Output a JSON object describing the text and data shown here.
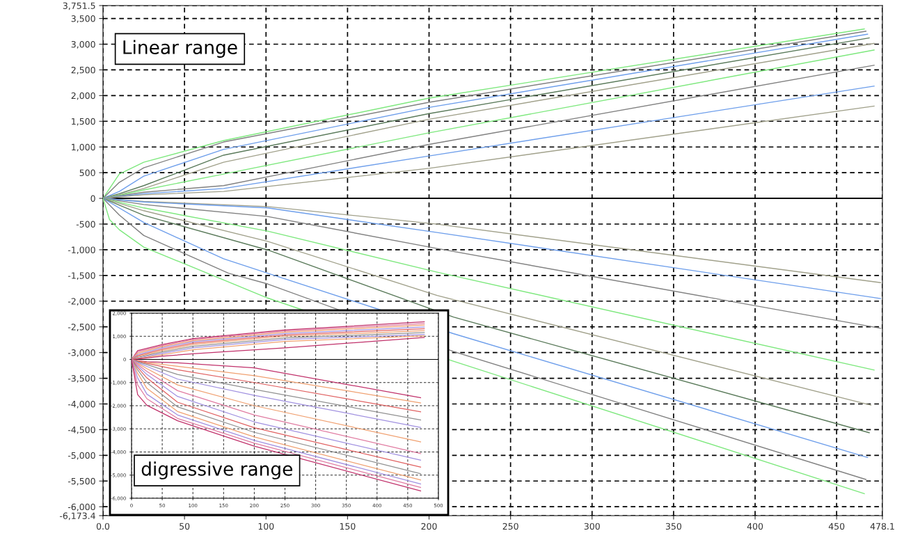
{
  "chart_data": [
    {
      "type": "line",
      "xlim": [
        0,
        478.1
      ],
      "ylim": [
        -6173.4,
        3751.5
      ],
      "xticks": [
        {
          "value": 0,
          "label": "0.0"
        },
        50,
        100,
        150,
        200,
        250,
        300,
        350,
        400,
        450,
        {
          "value": 478.1,
          "label": "478.1"
        }
      ],
      "yticks": [
        {
          "value": -6173.4,
          "label": "-6,173.4"
        },
        {
          "value": -6000,
          "label": "-6,000"
        },
        {
          "value": -5500,
          "label": "-5,500"
        },
        {
          "value": -5000,
          "label": "-5,000"
        },
        {
          "value": -4500,
          "label": "-4,500"
        },
        {
          "value": -4000,
          "label": "-4,000"
        },
        {
          "value": -3500,
          "label": "-3,500"
        },
        {
          "value": -3000,
          "label": "-3,000"
        },
        {
          "value": -2500,
          "label": "-2,500"
        },
        {
          "value": -2000,
          "label": "-2,000"
        },
        {
          "value": -1500,
          "label": "-1,500"
        },
        {
          "value": -1000,
          "label": "-1,000"
        },
        -500,
        0,
        500,
        {
          "value": 1000,
          "label": "1,000"
        },
        {
          "value": 1500,
          "label": "1,500"
        },
        {
          "value": 2000,
          "label": "2,000"
        },
        {
          "value": 2500,
          "label": "2,500"
        },
        {
          "value": 3000,
          "label": "3,000"
        },
        {
          "value": 3500,
          "label": "3,500"
        },
        {
          "value": 3751.5,
          "label": "3,751.5"
        }
      ],
      "grid": true,
      "line_style": "solid",
      "marker": "none",
      "ref_lines": [
        {
          "axis": "y",
          "value": 0,
          "color": "#000000",
          "line_style": "solid"
        }
      ],
      "annotations": [
        "Linear range"
      ],
      "series": [
        {
          "color": "#7de87d",
          "x": [
            0,
            10,
            25,
            74,
            200,
            467
          ],
          "values": [
            0,
            474,
            704,
            1125,
            1950,
            3297
          ]
        },
        {
          "color": "#808080",
          "x": [
            0,
            10,
            25,
            74,
            200,
            468
          ],
          "values": [
            0,
            311,
            596,
            1097,
            1870,
            3252
          ]
        },
        {
          "color": "#6d9eeb",
          "x": [
            0,
            10,
            25,
            74,
            200,
            469
          ],
          "values": [
            0,
            135,
            433,
            954,
            1770,
            3195
          ]
        },
        {
          "color": "#5a7a5a",
          "x": [
            0,
            10,
            25,
            74,
            200,
            470
          ],
          "values": [
            0,
            90,
            248,
            841,
            1650,
            3122
          ]
        },
        {
          "color": "#a0a08a",
          "x": [
            0,
            10,
            25,
            74,
            200,
            473
          ],
          "values": [
            0,
            70,
            192,
            704,
            1540,
            3015
          ]
        },
        {
          "color": "#7de87d",
          "x": [
            0,
            10,
            25,
            74,
            200,
            473
          ],
          "values": [
            0,
            60,
            163,
            474,
            1275,
            2886
          ]
        },
        {
          "color": "#808080",
          "x": [
            0,
            25,
            74,
            200,
            473
          ],
          "values": [
            0,
            120,
            248,
            1050,
            2591
          ]
        },
        {
          "color": "#6d9eeb",
          "x": [
            0,
            25,
            74,
            200,
            473
          ],
          "values": [
            0,
            90,
            192,
            825,
            2185
          ]
        },
        {
          "color": "#a0a08a",
          "x": [
            0,
            25,
            74,
            200,
            473
          ],
          "values": [
            0,
            70,
            135,
            585,
            1795
          ]
        },
        {
          "color": "#a0a08a",
          "x": [
            0,
            25,
            101,
            205,
            477
          ],
          "values": [
            0,
            -60,
            -160,
            -501,
            -1640
          ]
        },
        {
          "color": "#6d9eeb",
          "x": [
            0,
            25,
            101,
            205,
            477
          ],
          "values": [
            0,
            -70,
            -186,
            -664,
            -1949
          ]
        },
        {
          "color": "#808080",
          "x": [
            0,
            25,
            101,
            205,
            477
          ],
          "values": [
            0,
            -120,
            -353,
            -976,
            -2527
          ]
        },
        {
          "color": "#7de87d",
          "x": [
            0,
            25,
            101,
            205,
            473
          ],
          "values": [
            0,
            -186,
            -637,
            -1436,
            -3340
          ]
        },
        {
          "color": "#a0a08a",
          "x": [
            0,
            25,
            101,
            205,
            471
          ],
          "values": [
            0,
            -240,
            -836,
            -1890,
            -4024
          ]
        },
        {
          "color": "#5a7a5a",
          "x": [
            0,
            25,
            101,
            215,
            470
          ],
          "values": [
            0,
            -330,
            -1004,
            -2310,
            -4560
          ]
        },
        {
          "color": "#6d9eeb",
          "x": [
            0,
            25,
            74,
            101,
            215,
            469
          ],
          "values": [
            0,
            -469,
            -1175,
            -1456,
            -2633,
            -5041
          ]
        },
        {
          "color": "#808080",
          "x": [
            0,
            10,
            25,
            77,
            101,
            215,
            468
          ],
          "values": [
            0,
            -325,
            -722,
            -1456,
            -1665,
            -2980,
            -5470
          ]
        },
        {
          "color": "#7de87d",
          "x": [
            0,
            4,
            10,
            25,
            101,
            215,
            467
          ],
          "values": [
            0,
            -412,
            -610,
            -948,
            -1939,
            -3170,
            -5745
          ]
        }
      ]
    },
    {
      "type": "line",
      "xlim": [
        0,
        500
      ],
      "ylim": [
        -6000,
        2000
      ],
      "xticks": [
        0,
        50,
        100,
        150,
        200,
        250,
        300,
        350,
        400,
        450,
        500
      ],
      "yticks": [
        {
          "value": -6000,
          "label": "-6,000"
        },
        {
          "value": -5000,
          "label": "-5,000"
        },
        {
          "value": -4000,
          "label": "-4,000"
        },
        {
          "value": -3000,
          "label": "-3,000"
        },
        {
          "value": -2000,
          "label": "-2,000"
        },
        {
          "value": -1000,
          "label": "-1,000"
        },
        0,
        {
          "value": 1000,
          "label": "1,000"
        },
        {
          "value": 2000,
          "label": "2,000"
        }
      ],
      "grid": true,
      "line_style": "solid",
      "marker": "none",
      "ref_lines": [
        {
          "axis": "y",
          "value": 0,
          "color": "#000000",
          "line_style": "solid"
        }
      ],
      "annotations": [
        "digressive range"
      ],
      "series": [
        {
          "color": "#c0306a",
          "x": [
            0,
            10,
            50,
            100,
            250,
            477
          ],
          "values": [
            0,
            380,
            646,
            899,
            1273,
            1626
          ]
        },
        {
          "color": "#e07aa0",
          "x": [
            0,
            10,
            50,
            100,
            250,
            477
          ],
          "values": [
            0,
            330,
            600,
            860,
            1230,
            1555
          ]
        },
        {
          "color": "#f0a070",
          "x": [
            0,
            10,
            50,
            100,
            250,
            477
          ],
          "values": [
            0,
            270,
            550,
            810,
            1180,
            1485
          ]
        },
        {
          "color": "#a090e0",
          "x": [
            0,
            10,
            50,
            100,
            250,
            477
          ],
          "values": [
            0,
            210,
            500,
            760,
            1120,
            1404
          ]
        },
        {
          "color": "#e06060",
          "x": [
            0,
            10,
            50,
            100,
            250,
            477
          ],
          "values": [
            0,
            160,
            440,
            700,
            1060,
            1323
          ]
        },
        {
          "color": "#f0a070",
          "x": [
            0,
            10,
            50,
            100,
            250,
            477
          ],
          "values": [
            0,
            120,
            380,
            640,
            1000,
            1242
          ]
        },
        {
          "color": "#909090",
          "x": [
            0,
            10,
            50,
            100,
            250,
            477
          ],
          "values": [
            0,
            90,
            320,
            570,
            930,
            1161
          ]
        },
        {
          "color": "#a090e0",
          "x": [
            0,
            10,
            50,
            100,
            250,
            477
          ],
          "values": [
            0,
            60,
            260,
            500,
            860,
            1080
          ]
        },
        {
          "color": "#f0a070",
          "x": [
            0,
            10,
            50,
            100,
            250,
            477
          ],
          "values": [
            0,
            40,
            200,
            420,
            780,
            1020
          ]
        },
        {
          "color": "#c0306a",
          "x": [
            0,
            10,
            50,
            100,
            250,
            477
          ],
          "values": [
            0,
            20,
            141,
            242,
            500,
            949
          ]
        },
        {
          "color": "#c0306a",
          "x": [
            0,
            10,
            25,
            75,
            200,
            471
          ],
          "values": [
            0,
            -50,
            -100,
            -150,
            -364,
            -1656
          ]
        },
        {
          "color": "#f0a070",
          "x": [
            0,
            10,
            25,
            75,
            200,
            471
          ],
          "values": [
            0,
            -60,
            -130,
            -300,
            -700,
            -1879
          ]
        },
        {
          "color": "#e06060",
          "x": [
            0,
            10,
            25,
            75,
            200,
            471
          ],
          "values": [
            0,
            -80,
            -170,
            -450,
            -1000,
            -2262
          ]
        },
        {
          "color": "#909090",
          "x": [
            0,
            10,
            25,
            75,
            200,
            471
          ],
          "values": [
            0,
            -100,
            -220,
            -650,
            -1300,
            -2616
          ]
        },
        {
          "color": "#a090e0",
          "x": [
            0,
            10,
            25,
            75,
            200,
            471
          ],
          "values": [
            0,
            -130,
            -300,
            -850,
            -1550,
            -2939
          ]
        },
        {
          "color": "#f0a070",
          "x": [
            0,
            10,
            25,
            75,
            200,
            471
          ],
          "values": [
            0,
            -170,
            -400,
            -1100,
            -2000,
            -3565
          ]
        },
        {
          "color": "#e07aa0",
          "x": [
            0,
            10,
            25,
            75,
            200,
            471
          ],
          "values": [
            0,
            -220,
            -520,
            -1350,
            -2400,
            -4070
          ]
        },
        {
          "color": "#a090e0",
          "x": [
            0,
            10,
            25,
            75,
            200,
            471
          ],
          "values": [
            0,
            -280,
            -650,
            -1600,
            -2700,
            -4353
          ]
        },
        {
          "color": "#e06060",
          "x": [
            0,
            10,
            25,
            75,
            200,
            471
          ],
          "values": [
            0,
            -350,
            -800,
            -1850,
            -2950,
            -4656
          ]
        },
        {
          "color": "#909090",
          "x": [
            0,
            10,
            25,
            75,
            200,
            471
          ],
          "values": [
            0,
            -450,
            -1000,
            -2050,
            -3150,
            -4939
          ]
        },
        {
          "color": "#f0a070",
          "x": [
            0,
            10,
            25,
            75,
            200,
            471
          ],
          "values": [
            0,
            -600,
            -1250,
            -2250,
            -3350,
            -5212
          ]
        },
        {
          "color": "#a090e0",
          "x": [
            0,
            10,
            25,
            75,
            200,
            471
          ],
          "values": [
            0,
            -800,
            -1500,
            -2400,
            -3500,
            -5383
          ]
        },
        {
          "color": "#e07aa0",
          "x": [
            0,
            10,
            25,
            75,
            200,
            471
          ],
          "values": [
            0,
            -1100,
            -1700,
            -2550,
            -3620,
            -5535
          ]
        },
        {
          "color": "#c0306a",
          "x": [
            0,
            10,
            25,
            75,
            200,
            471
          ],
          "values": [
            0,
            -1525,
            -1980,
            -2650,
            -3747,
            -5686
          ]
        }
      ]
    }
  ]
}
